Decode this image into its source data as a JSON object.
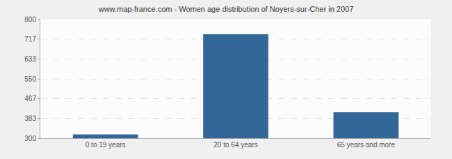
{
  "chart_data": {
    "type": "bar",
    "title": "www.map-france.com - Women age distribution of Noyers-sur-Cher in 2007",
    "categories": [
      "0 to 19 years",
      "20 to 64 years",
      "65 years and more"
    ],
    "values": [
      316,
      738,
      410
    ],
    "color": "#336699",
    "ylim": [
      300,
      800
    ],
    "yticks": [
      300,
      383,
      467,
      550,
      633,
      717,
      800
    ],
    "grid": true
  }
}
